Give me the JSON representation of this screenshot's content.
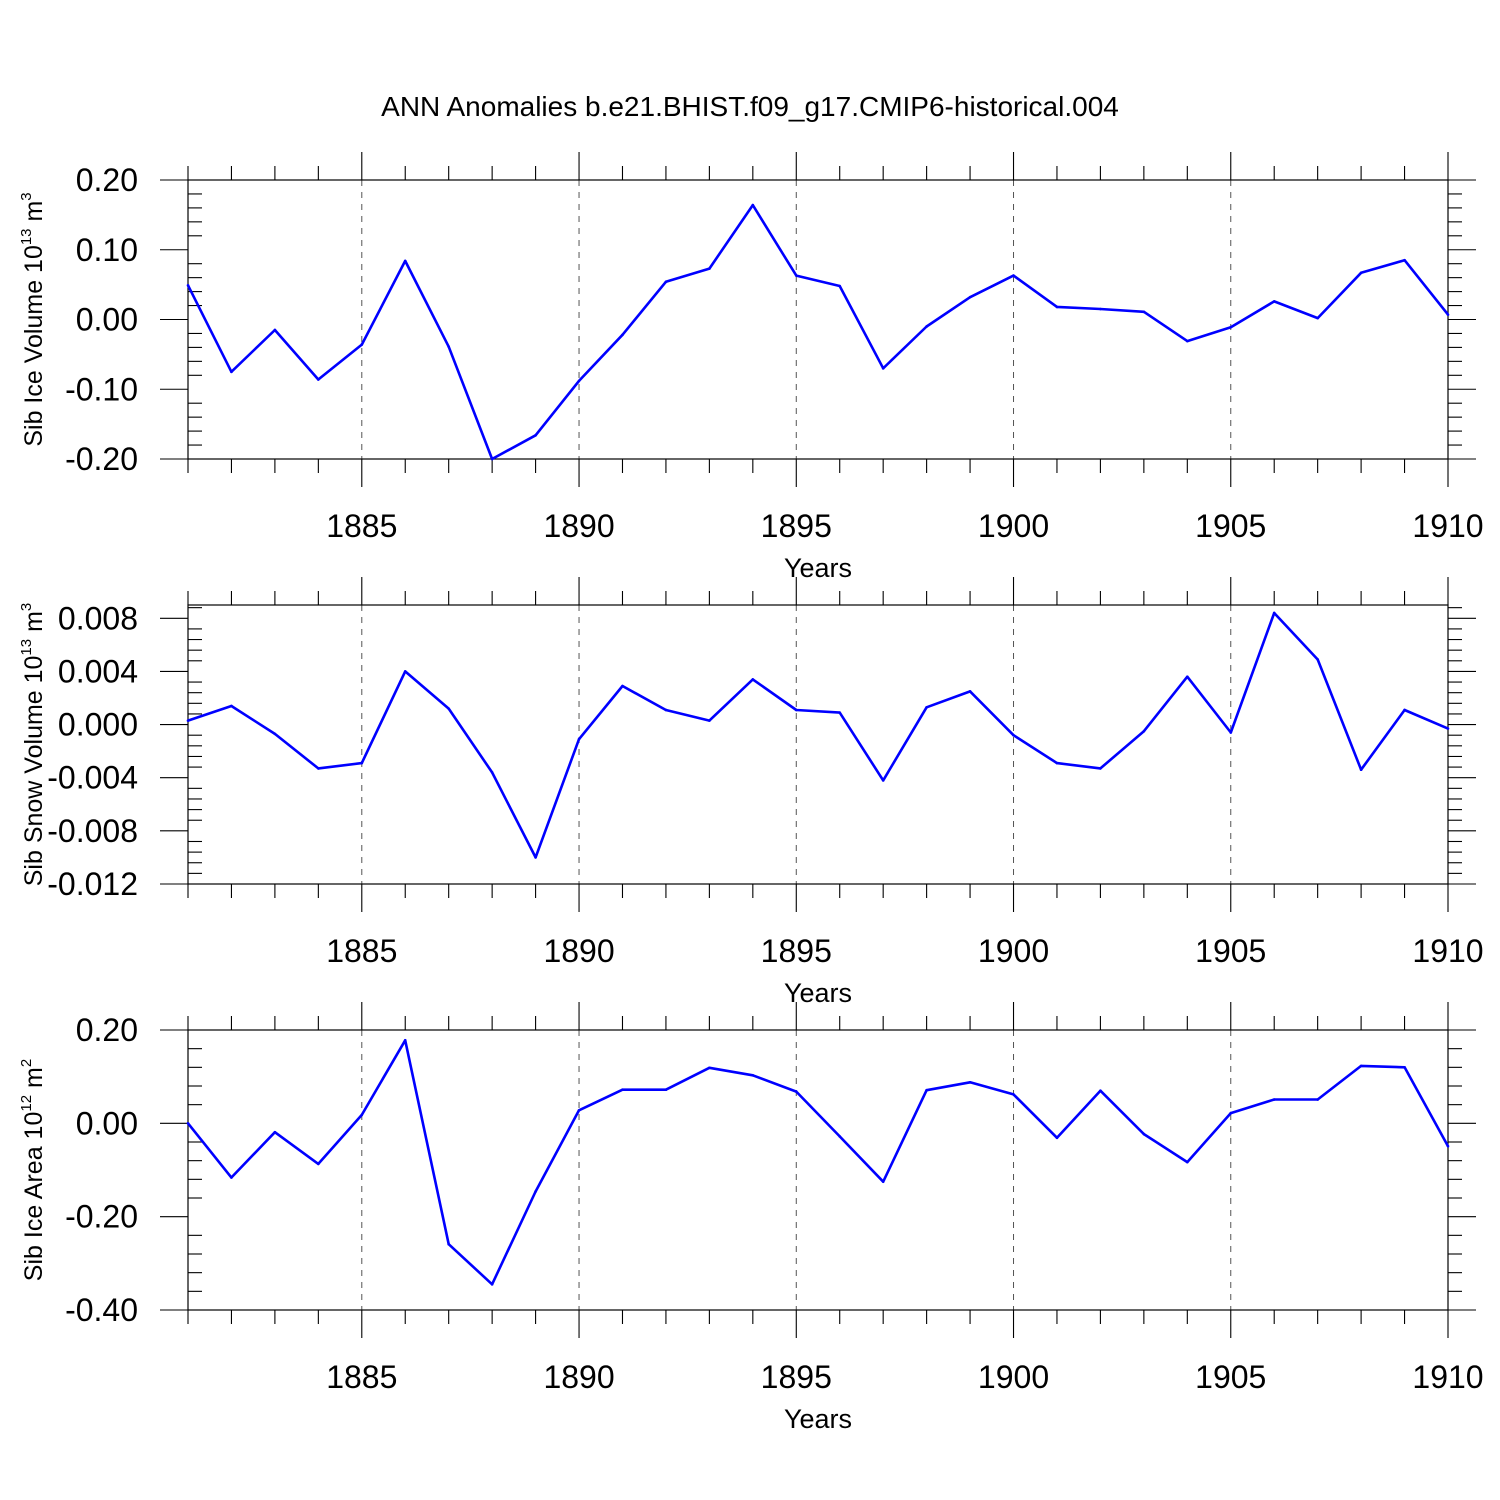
{
  "title": "ANN Anomalies b.e21.BHIST.f09_g17.CMIP6-historical.004",
  "colors": {
    "series": "#0000ff",
    "axis": "#000000",
    "grid": "#555555"
  },
  "chart_data": [
    {
      "type": "line",
      "ylabel": {
        "text": "Sib Ice Volume 10",
        "sup": "13",
        "unit": " m",
        "unit_sup": "3"
      },
      "xlabel": "Years",
      "xlim": [
        1881,
        1910
      ],
      "ylim": [
        -0.2,
        0.2
      ],
      "yticks": [
        -0.2,
        -0.1,
        0.0,
        0.1,
        0.2
      ],
      "yticklabels": [
        "-0.20",
        "-0.10",
        "0.00",
        "0.10",
        "0.20"
      ],
      "ygrid_minor": 0.02,
      "xticks": [
        1885,
        1890,
        1895,
        1900,
        1905,
        1910
      ],
      "xticklabels": [
        "1885",
        "1890",
        "1895",
        "1900",
        "1905",
        "1910"
      ],
      "grid": "dashed vertical at major x ticks",
      "series": [
        {
          "name": "Sib Ice Volume",
          "x": [
            1881,
            1882,
            1883,
            1884,
            1885,
            1886,
            1887,
            1888,
            1889,
            1890,
            1891,
            1892,
            1893,
            1894,
            1895,
            1896,
            1897,
            1898,
            1899,
            1900,
            1901,
            1902,
            1903,
            1904,
            1905,
            1906,
            1907,
            1908,
            1909,
            1910
          ],
          "values": [
            0.049,
            -0.075,
            -0.015,
            -0.086,
            -0.036,
            0.084,
            -0.039,
            -0.2,
            -0.166,
            -0.088,
            -0.022,
            0.054,
            0.073,
            0.164,
            0.063,
            0.048,
            -0.07,
            -0.01,
            0.032,
            0.063,
            0.018,
            0.015,
            0.011,
            -0.031,
            -0.011,
            0.026,
            0.002,
            0.067,
            0.085,
            0.007
          ]
        }
      ]
    },
    {
      "type": "line",
      "ylabel": {
        "text": "Sib Snow Volume 10",
        "sup": "13",
        "unit": " m",
        "unit_sup": "3"
      },
      "xlabel": "Years",
      "xlim": [
        1881,
        1910
      ],
      "ylim": [
        -0.012,
        0.009
      ],
      "yticks": [
        -0.012,
        -0.008,
        -0.004,
        0.0,
        0.004,
        0.008
      ],
      "yticklabels": [
        "-0.012",
        "-0.008",
        "-0.004",
        "0.000",
        "0.004",
        "0.008"
      ],
      "ygrid_minor": 0.0008,
      "xticks": [
        1885,
        1890,
        1895,
        1900,
        1905,
        1910
      ],
      "xticklabels": [
        "1885",
        "1890",
        "1895",
        "1900",
        "1905",
        "1910"
      ],
      "grid": "dashed vertical at major x ticks",
      "series": [
        {
          "name": "Sib Snow Volume",
          "x": [
            1881,
            1882,
            1883,
            1884,
            1885,
            1886,
            1887,
            1888,
            1889,
            1890,
            1891,
            1892,
            1893,
            1894,
            1895,
            1896,
            1897,
            1898,
            1899,
            1900,
            1901,
            1902,
            1903,
            1904,
            1905,
            1906,
            1907,
            1908,
            1909,
            1910
          ],
          "values": [
            0.0003,
            0.0014,
            -0.0007,
            -0.0033,
            -0.0029,
            0.004,
            0.0012,
            -0.0036,
            -0.01,
            -0.0011,
            0.0029,
            0.0011,
            0.0003,
            0.0034,
            0.0011,
            0.0009,
            -0.0042,
            0.0013,
            0.0025,
            -0.0008,
            -0.0029,
            -0.0033,
            -0.0005,
            0.0036,
            -0.0006,
            0.0084,
            0.0049,
            -0.0034,
            0.0011,
            -0.0003
          ]
        }
      ]
    },
    {
      "type": "line",
      "ylabel": {
        "text": "Sib Ice Area 10",
        "sup": "12",
        "unit": " m",
        "unit_sup": "2"
      },
      "xlabel": "Years",
      "xlim": [
        1881,
        1910
      ],
      "ylim": [
        -0.4,
        0.2
      ],
      "yticks": [
        -0.4,
        -0.2,
        0.0,
        0.2
      ],
      "yticklabels": [
        "-0.40",
        "-0.20",
        "0.00",
        "0.20"
      ],
      "ygrid_minor": 0.04,
      "xticks": [
        1885,
        1890,
        1895,
        1900,
        1905,
        1910
      ],
      "xticklabels": [
        "1885",
        "1890",
        "1895",
        "1900",
        "1905",
        "1910"
      ],
      "grid": "dashed vertical at major x ticks",
      "series": [
        {
          "name": "Sib Ice Area",
          "x": [
            1881,
            1882,
            1883,
            1884,
            1885,
            1886,
            1887,
            1888,
            1889,
            1890,
            1891,
            1892,
            1893,
            1894,
            1895,
            1896,
            1897,
            1898,
            1899,
            1900,
            1901,
            1902,
            1903,
            1904,
            1905,
            1906,
            1907,
            1908,
            1909,
            1910
          ],
          "values": [
            0.0,
            -0.116,
            -0.019,
            -0.087,
            0.018,
            0.178,
            -0.259,
            -0.345,
            -0.146,
            0.028,
            0.072,
            0.072,
            0.119,
            0.103,
            0.068,
            -0.028,
            -0.125,
            0.071,
            0.088,
            0.062,
            -0.031,
            0.07,
            -0.023,
            -0.083,
            0.022,
            0.051,
            0.051,
            0.123,
            0.12,
            -0.049
          ]
        }
      ]
    }
  ]
}
